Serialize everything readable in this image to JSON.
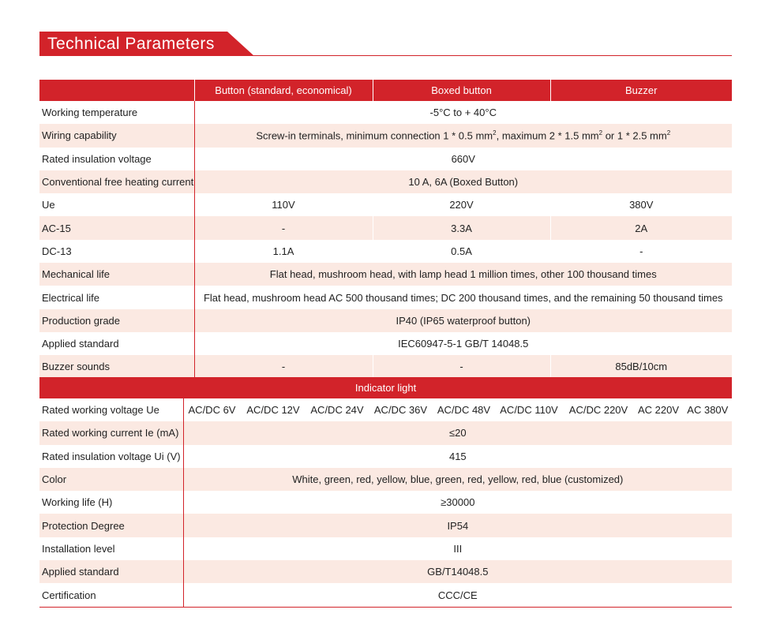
{
  "title": "Technical Parameters",
  "colors": {
    "accent": "#d2232a",
    "stripe": "#fbe9e2"
  },
  "button_section": {
    "headers": [
      "",
      "Button (standard, economical)",
      "Boxed button",
      "Buzzer"
    ],
    "rows": [
      {
        "label": "Working temperature",
        "span": "-5°C to + 40°C"
      },
      {
        "label": "Wiring capability",
        "span_parts": [
          "Screw-in terminals, minimum connection 1 * 0.5 mm",
          "2",
          ", maximum 2 * 1.5 mm",
          "2",
          " or 1 * 2.5 mm",
          "2"
        ]
      },
      {
        "label": "Rated insulation voltage",
        "span": "660V"
      },
      {
        "label": "Conventional free heating current",
        "span": "10 A, 6A (Boxed Button)"
      },
      {
        "label": "Ue",
        "cells": [
          "110V",
          "220V",
          "380V"
        ]
      },
      {
        "label": "AC-15",
        "cells": [
          "-",
          "3.3A",
          "2A"
        ]
      },
      {
        "label": "DC-13",
        "cells": [
          "1.1A",
          "0.5A",
          "-"
        ]
      },
      {
        "label": "Mechanical life",
        "span": "Flat head, mushroom head, with lamp head 1 million times, other 100 thousand times"
      },
      {
        "label": "Electrical life",
        "span": "Flat head, mushroom head AC 500 thousand times; DC 200 thousand times, and the remaining 50 thousand times"
      },
      {
        "label": "Production grade",
        "span": "IP40 (IP65 waterproof button)"
      },
      {
        "label": "Applied standard",
        "span": "IEC60947-5-1 GB/T 14048.5"
      },
      {
        "label": "Buzzer sounds",
        "cells": [
          "-",
          "-",
          "85dB/10cm"
        ]
      }
    ]
  },
  "indicator_section": {
    "header": "Indicator light",
    "voltage_label": "Rated working voltage Ue",
    "voltages": [
      "AC/DC 6V",
      "AC/DC 12V",
      "AC/DC 24V",
      "AC/DC 36V",
      "AC/DC 48V",
      "AC/DC 110V",
      "AC/DC 220V",
      "AC 220V",
      "AC 380V"
    ],
    "rows": [
      {
        "label": "Rated working current Ie (mA)",
        "span": "≤20"
      },
      {
        "label": "Rated insulation voltage Ui (V)",
        "span": "415"
      },
      {
        "label": "Color",
        "span": "White, green, red, yellow, blue, green, red, yellow, red, blue (customized)"
      },
      {
        "label": "Working life (H)",
        "span": "≥30000"
      },
      {
        "label": "Protection Degree",
        "span": "IP54"
      },
      {
        "label": "Installation level",
        "span": "III"
      },
      {
        "label": "Applied standard",
        "span": "GB/T14048.5"
      },
      {
        "label": "Certification",
        "span": "CCC/CE"
      }
    ]
  }
}
